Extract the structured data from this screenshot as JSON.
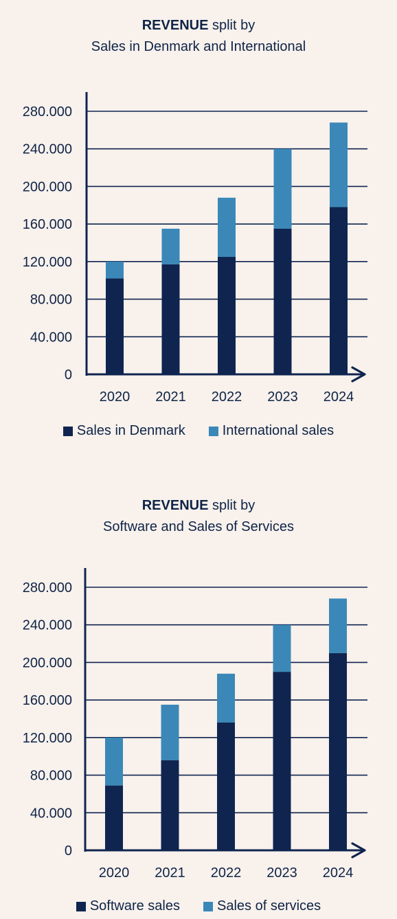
{
  "chart_data": [
    {
      "type": "bar",
      "stacked": true,
      "title_bold": "REVENUE",
      "title_rest": " split by",
      "subtitle": "Sales in Denmark and International",
      "categories": [
        "2020",
        "2021",
        "2022",
        "2023",
        "2024"
      ],
      "series": [
        {
          "name": "Sales in Denmark",
          "values": [
            102000,
            117000,
            125000,
            155000,
            178000
          ],
          "color": "#0f2550"
        },
        {
          "name": "International sales",
          "values": [
            18000,
            38000,
            63000,
            85000,
            90000
          ],
          "color": "#3b88b8"
        }
      ],
      "y_ticks": [
        "0",
        "40.000",
        "80.000",
        "120.000",
        "160.000",
        "200.000",
        "240.000",
        "280.000"
      ],
      "ylim": [
        0,
        280000
      ],
      "grid": true,
      "legend_position": "bottom"
    },
    {
      "type": "bar",
      "stacked": true,
      "title_bold": "REVENUE",
      "title_rest": " split by",
      "subtitle": "Software and Sales of Services",
      "categories": [
        "2020",
        "2021",
        "2022",
        "2023",
        "2024"
      ],
      "series": [
        {
          "name": "Software sales",
          "values": [
            69000,
            96000,
            136000,
            190000,
            210000
          ],
          "color": "#0f2550"
        },
        {
          "name": "Sales of services",
          "values": [
            51000,
            59000,
            52000,
            50000,
            58000
          ],
          "color": "#3b88b8"
        }
      ],
      "y_ticks": [
        "0",
        "40.000",
        "80.000",
        "120.000",
        "160.000",
        "200.000",
        "240.000",
        "280.000"
      ],
      "ylim": [
        0,
        280000
      ],
      "grid": true,
      "legend_position": "bottom"
    }
  ]
}
